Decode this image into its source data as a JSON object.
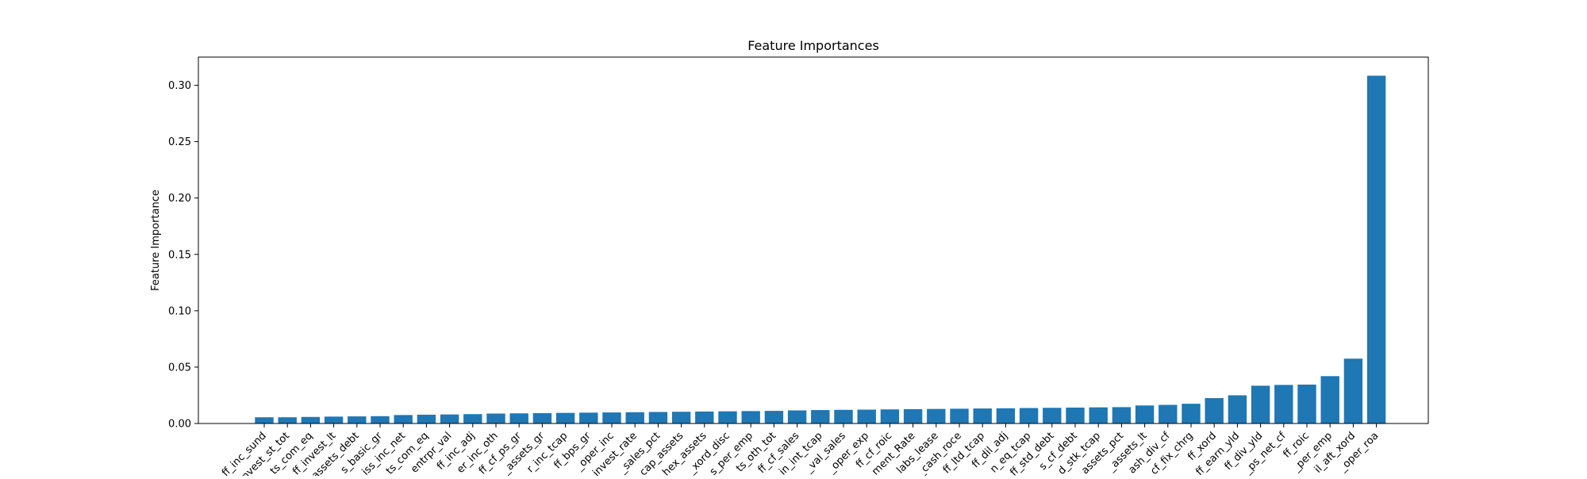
{
  "chart_data": {
    "type": "bar",
    "title": "Feature Importances",
    "xlabel": "",
    "ylabel": "Feature Importance",
    "ylim": [
      0,
      0.325
    ],
    "yticks": [
      0.0,
      0.05,
      0.1,
      0.15,
      0.2,
      0.25,
      0.3
    ],
    "ytick_labels": [
      "0.00",
      "0.05",
      "0.10",
      "0.15",
      "0.20",
      "0.25",
      "0.30"
    ],
    "grid": false,
    "bar_color": "#1f77b4",
    "categories": [
      "ff_inc_sund",
      "ff_invest_st_tot",
      "ff_assets_com_eq",
      "ff_invest_lt",
      "ff_assets_debt",
      "ff_eps_basic_gr",
      "ff_stk_iss_inc_net",
      "ff_assets_com_eq",
      "ff_entrpr_val",
      "ff_inc_adj",
      "ff_nonoper_inc_oth",
      "ff_cf_ps_gr",
      "ff_assets_gr",
      "ff_oper_inc_tcap",
      "ff_bps_gr",
      "ff_non_oper_inc",
      "ff_invest_rate",
      "ff_sales_pct",
      "ff_cap_assets",
      "ff_capex_assets",
      "ff_xord_disc",
      "ff_sales_per_emp",
      "ff_assets_oth_tot",
      "ff_cf_sales",
      "ff_min_int_tcap",
      "ff_val_sales",
      "ff_oper_exp",
      "ff_cf_roic",
      "ff_Management_Rate",
      "ff_liabs_lease",
      "ff_cash_roce",
      "ff_ltd_tcap",
      "ff_dil_adj",
      "ff_com_eq_tcap",
      "ff_std_debt",
      "ff_cfs_cf_debt",
      "ff_pfd_stk_tcap",
      "ff_assets_pct",
      "ff_tax_assets_lt",
      "ff_cash_div_cf",
      "ff_cf_fix_chrg",
      "ff_xord",
      "ff_earn_yld",
      "ff_div_yld",
      "ff_ps_net_cf",
      "ff_roic",
      "ff_sales_per_emp",
      "ff_eps_dil_aft_xord",
      "ff_oper_roa"
    ],
    "x_tick_labels": [
      "ff_inc_sund",
      "invest_st_tot",
      "ts_com_eq",
      "ff_invest_lt",
      "assets_debt",
      "s_basic_gr",
      "iss_inc_net",
      "ts_com_eq",
      "entrpr_val",
      "ff_inc_adj",
      "er_inc_oth",
      "ff_cf_ps_gr",
      "_assets_gr",
      "r_inc_tcap",
      "ff_bps_gr",
      "_oper_inc",
      "invest_rate",
      "_sales_pct",
      "cap_assets",
      "hex_assets",
      "_xord_disc",
      "s_per_emp",
      "ts_oth_tot",
      "ff_cf_sales",
      "in_int_tcap",
      "_val_sales",
      "_oper_exp",
      "ff_cf_roic",
      "ment_Rate",
      "labs_lease",
      "_cash_roce",
      "ff_ltd_tcap",
      "ff_dil_adj",
      "n_eq_tcap",
      "ff_std_debt",
      "s_cf_debt",
      "d_stk_tcap",
      "assets_pct",
      "_assets_lt",
      "ash_div_cf",
      "cf_fix_chrg",
      "ff_xord",
      "ff_earn_yld",
      "ff_div_yld",
      "_ps_net_cf",
      "ff_roic",
      "_per_emp",
      "il_aft_xord",
      "_oper_roa"
    ],
    "values": [
      0.0055,
      0.0055,
      0.0058,
      0.0061,
      0.0063,
      0.0065,
      0.0075,
      0.0078,
      0.008,
      0.0083,
      0.0088,
      0.009,
      0.0092,
      0.0094,
      0.0096,
      0.0098,
      0.01,
      0.0102,
      0.0104,
      0.0106,
      0.0108,
      0.011,
      0.0112,
      0.0116,
      0.0119,
      0.0121,
      0.0123,
      0.0125,
      0.0127,
      0.0129,
      0.0131,
      0.0133,
      0.0135,
      0.0137,
      0.0139,
      0.0141,
      0.0143,
      0.0145,
      0.016,
      0.0165,
      0.0175,
      0.0225,
      0.025,
      0.0335,
      0.0342,
      0.0345,
      0.042,
      0.0575,
      0.3085
    ]
  }
}
